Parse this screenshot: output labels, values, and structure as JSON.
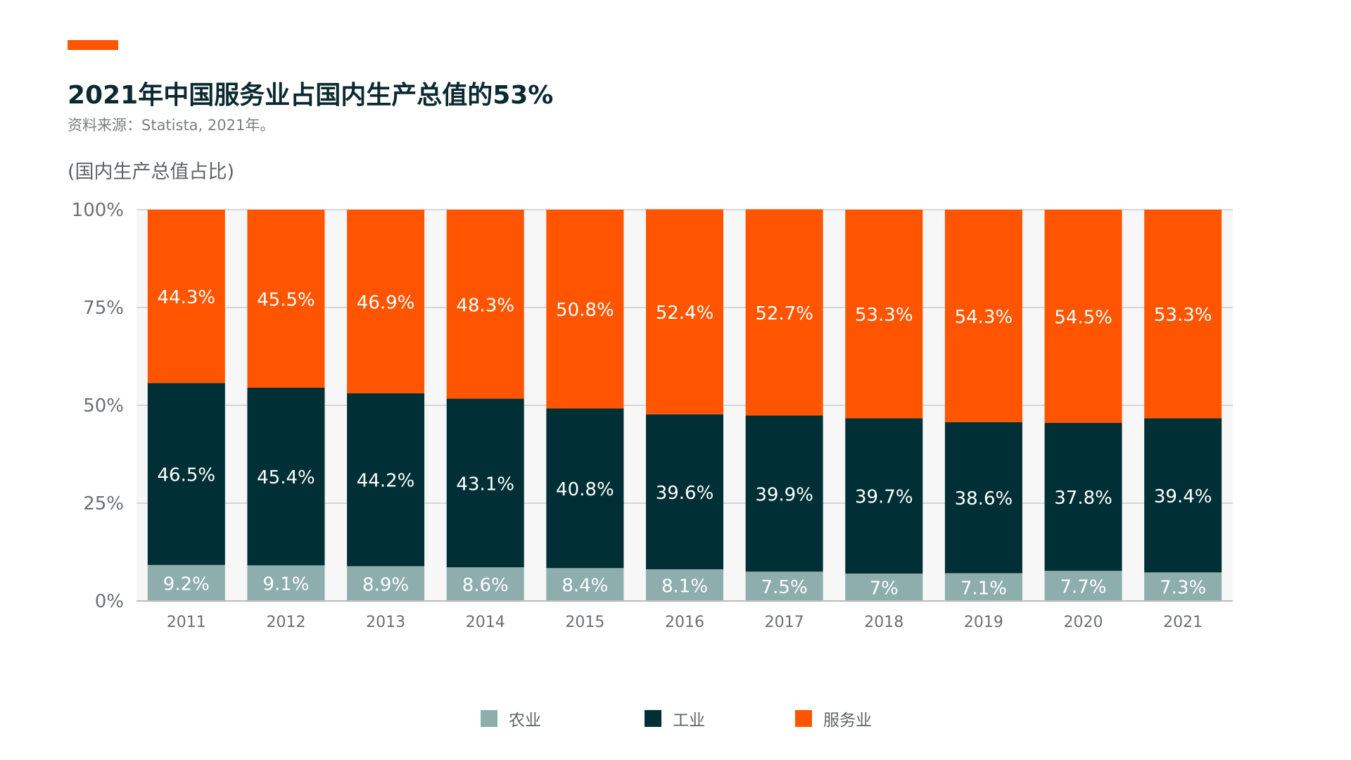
{
  "header": {
    "title": "2021年中国服务业占国内生产总值的53%",
    "source": "资料来源：Statista, 2021年。",
    "unit_label": "(国内生产总值占比)"
  },
  "colors": {
    "accent": "#ff5500",
    "agriculture": "#8eadad",
    "industry": "#002f35",
    "services": "#ff5500",
    "grid": "#cccccc",
    "plot_bg": "#f7f7f7",
    "axis_text": "#6b7075",
    "bar_text": "#ffffff"
  },
  "chart_data": {
    "type": "bar",
    "stacked": true,
    "title": "2021年中国服务业占国内生产总值的53%",
    "subtitle": "资料来源：Statista, 2021年。",
    "ylabel": "(国内生产总值占比)",
    "xlabel": "",
    "ylim": [
      0,
      100
    ],
    "yticks": [
      0,
      25,
      50,
      75,
      100
    ],
    "ytick_labels": [
      "0%",
      "25%",
      "50%",
      "75%",
      "100%"
    ],
    "grid": true,
    "legend_position": "bottom-center",
    "categories": [
      "2011",
      "2012",
      "2013",
      "2014",
      "2015",
      "2016",
      "2017",
      "2018",
      "2019",
      "2020",
      "2021"
    ],
    "series": [
      {
        "name": "农业",
        "values": [
          9.2,
          9.1,
          8.9,
          8.6,
          8.4,
          8.1,
          7.5,
          7,
          7.1,
          7.7,
          7.3
        ],
        "labels": [
          "9.2%",
          "9.1%",
          "8.9%",
          "8.6%",
          "8.4%",
          "8.1%",
          "7.5%",
          "7%",
          "7.1%",
          "7.7%",
          "7.3%"
        ]
      },
      {
        "name": "工业",
        "values": [
          46.5,
          45.4,
          44.2,
          43.1,
          40.8,
          39.6,
          39.9,
          39.7,
          38.6,
          37.8,
          39.4
        ],
        "labels": [
          "46.5%",
          "45.4%",
          "44.2%",
          "43.1%",
          "40.8%",
          "39.6%",
          "39.9%",
          "39.7%",
          "38.6%",
          "37.8%",
          "39.4%"
        ]
      },
      {
        "name": "服务业",
        "values": [
          44.3,
          45.5,
          46.9,
          48.3,
          50.8,
          52.4,
          52.7,
          53.3,
          54.3,
          54.5,
          53.3
        ],
        "labels": [
          "44.3%",
          "45.5%",
          "46.9%",
          "48.3%",
          "50.8%",
          "52.4%",
          "52.7%",
          "53.3%",
          "54.3%",
          "54.5%",
          "53.3%"
        ]
      }
    ]
  }
}
